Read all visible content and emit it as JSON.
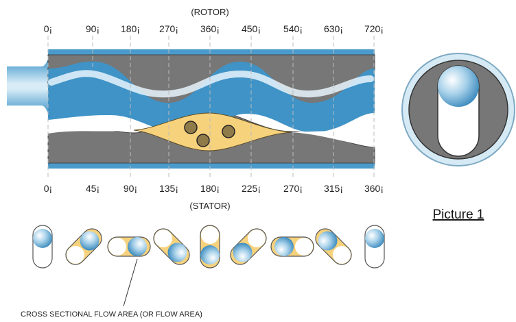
{
  "rotor_label": "(ROTOR)",
  "stator_label": "(STATOR)",
  "rotor_ticks": [
    "0¡",
    "90¡",
    "180¡",
    "270¡",
    "360¡",
    "450¡",
    "540¡",
    "630¡",
    "720¡"
  ],
  "stator_ticks": [
    "0¡",
    "45¡",
    "90¡",
    "135¡",
    "180¡",
    "225¡",
    "270¡",
    "315¡",
    "360¡"
  ],
  "picture_label": "Picture 1",
  "cross_section_caption": "CROSS SECTIONAL FLOW AREA (OR FLOW AREA)",
  "colors": {
    "stator_gray": "#777777",
    "flow_blue": "#3f93c6",
    "cavity_yellow": "#f7d27c",
    "particle_brown": "#8f7a4a"
  }
}
